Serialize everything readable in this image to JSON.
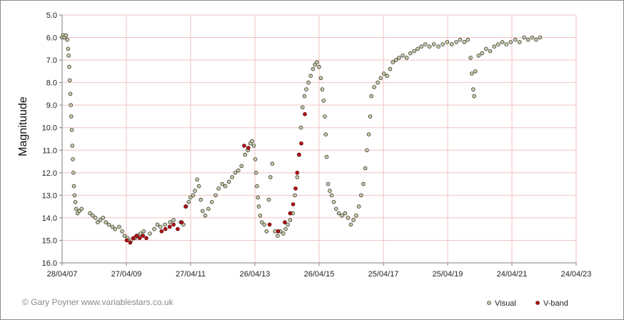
{
  "credit": "© Gary Poyner www.variablestars.co.uk",
  "colors": {
    "grid": "#f3c2c2",
    "axis": "#7f7f7f",
    "visual_fill": "#c8cfa6",
    "visual_edge": "#333333",
    "vband_fill": "#b80f18",
    "vband_edge": "#5a0000"
  },
  "chart_data": {
    "type": "scatter",
    "title": "",
    "xlabel": "",
    "ylabel": "Magnituude",
    "y_inverted": true,
    "ylim": [
      5.0,
      16.0
    ],
    "yticks": [
      "5.0",
      "6.0",
      "7.0",
      "8.0",
      "9.0",
      "10.0",
      "11.0",
      "12.0",
      "13.0",
      "14.0",
      "15.0",
      "16.0"
    ],
    "xlim": [
      "2007-04-28",
      "2023-04-24"
    ],
    "xticks": [
      "28/04/07",
      "27/04/09",
      "27/04/11",
      "26/04/13",
      "26/04/15",
      "25/04/17",
      "25/04/19",
      "24/04/21",
      "24/04/23"
    ],
    "grid": true,
    "legend": {
      "position": "bottom-right",
      "entries": [
        "Visual",
        "V-band"
      ]
    },
    "series": [
      {
        "name": "Visual",
        "points": [
          [
            "2007-04-28",
            6.0
          ],
          [
            "2007-05-10",
            5.9
          ],
          [
            "2007-05-25",
            6.0
          ],
          [
            "2007-06-10",
            5.9
          ],
          [
            "2007-06-25",
            6.1
          ],
          [
            "2007-07-05",
            6.5
          ],
          [
            "2007-07-12",
            6.8
          ],
          [
            "2007-07-18",
            7.3
          ],
          [
            "2007-07-24",
            7.9
          ],
          [
            "2007-07-30",
            8.5
          ],
          [
            "2007-08-05",
            9.0
          ],
          [
            "2007-08-10",
            9.5
          ],
          [
            "2007-08-16",
            10.1
          ],
          [
            "2007-08-22",
            10.8
          ],
          [
            "2007-08-28",
            11.4
          ],
          [
            "2007-09-03",
            12.0
          ],
          [
            "2007-09-09",
            12.6
          ],
          [
            "2007-09-16",
            13.0
          ],
          [
            "2007-09-25",
            13.3
          ],
          [
            "2007-10-05",
            13.6
          ],
          [
            "2007-10-20",
            13.8
          ],
          [
            "2007-11-10",
            13.7
          ],
          [
            "2007-12-05",
            13.6
          ],
          [
            "2008-03-10",
            13.8
          ],
          [
            "2008-04-10",
            13.9
          ],
          [
            "2008-05-10",
            14.0
          ],
          [
            "2008-06-05",
            14.2
          ],
          [
            "2008-07-05",
            14.1
          ],
          [
            "2008-08-05",
            14.0
          ],
          [
            "2008-09-05",
            14.2
          ],
          [
            "2008-10-10",
            14.3
          ],
          [
            "2008-11-20",
            14.4
          ],
          [
            "2008-12-20",
            14.5
          ],
          [
            "2009-02-05",
            14.4
          ],
          [
            "2009-03-10",
            14.6
          ],
          [
            "2009-04-05",
            14.8
          ],
          [
            "2009-05-10",
            14.9
          ],
          [
            "2009-06-20",
            15.0
          ],
          [
            "2009-08-05",
            14.9
          ],
          [
            "2009-09-10",
            14.8
          ],
          [
            "2009-10-05",
            14.7
          ],
          [
            "2009-11-10",
            14.6
          ],
          [
            "2010-01-20",
            14.7
          ],
          [
            "2010-03-10",
            14.5
          ],
          [
            "2010-04-15",
            14.3
          ],
          [
            "2010-05-20",
            14.4
          ],
          [
            "2010-07-10",
            14.3
          ],
          [
            "2010-09-05",
            14.2
          ],
          [
            "2010-10-15",
            14.1
          ],
          [
            "2011-01-05",
            14.2
          ],
          [
            "2011-02-05",
            14.3
          ],
          [
            "2011-03-05",
            13.5
          ],
          [
            "2011-04-05",
            13.3
          ],
          [
            "2011-04-25",
            13.1
          ],
          [
            "2011-05-25",
            13.0
          ],
          [
            "2011-06-15",
            12.8
          ],
          [
            "2011-07-10",
            12.3
          ],
          [
            "2011-07-30",
            12.6
          ],
          [
            "2011-08-20",
            13.2
          ],
          [
            "2011-09-10",
            13.7
          ],
          [
            "2011-10-10",
            13.9
          ],
          [
            "2011-11-15",
            13.6
          ],
          [
            "2011-12-25",
            13.3
          ],
          [
            "2012-02-05",
            13.0
          ],
          [
            "2012-03-10",
            12.7
          ],
          [
            "2012-04-20",
            12.5
          ],
          [
            "2012-05-25",
            12.6
          ],
          [
            "2012-07-05",
            12.4
          ],
          [
            "2012-08-10",
            12.2
          ],
          [
            "2012-09-15",
            12.0
          ],
          [
            "2012-10-20",
            11.9
          ],
          [
            "2012-11-25",
            11.7
          ],
          [
            "2013-01-05",
            11.2
          ],
          [
            "2013-02-05",
            11.0
          ],
          [
            "2013-03-05",
            10.7
          ],
          [
            "2013-03-25",
            10.6
          ],
          [
            "2013-04-15",
            10.8
          ],
          [
            "2013-05-01",
            11.4
          ],
          [
            "2013-05-10",
            12.0
          ],
          [
            "2013-05-20",
            12.6
          ],
          [
            "2013-05-30",
            13.1
          ],
          [
            "2013-06-10",
            13.5
          ],
          [
            "2013-06-25",
            13.9
          ],
          [
            "2013-07-15",
            14.2
          ],
          [
            "2013-08-10",
            14.3
          ],
          [
            "2013-09-05",
            14.6
          ],
          [
            "2013-10-01",
            13.2
          ],
          [
            "2013-10-20",
            12.2
          ],
          [
            "2013-11-10",
            11.6
          ],
          [
            "2013-12-10",
            14.6
          ],
          [
            "2014-01-10",
            14.8
          ],
          [
            "2014-02-10",
            14.6
          ],
          [
            "2014-03-15",
            14.7
          ],
          [
            "2014-04-10",
            14.5
          ],
          [
            "2014-05-05",
            14.3
          ],
          [
            "2014-06-01",
            14.1
          ],
          [
            "2014-07-01",
            13.8
          ],
          [
            "2014-07-25",
            13.0
          ],
          [
            "2014-08-20",
            12.2
          ],
          [
            "2014-09-10",
            11.2
          ],
          [
            "2014-10-01",
            10.0
          ],
          [
            "2014-10-20",
            9.1
          ],
          [
            "2014-11-10",
            8.6
          ],
          [
            "2014-12-01",
            8.3
          ],
          [
            "2014-12-25",
            8.0
          ],
          [
            "2015-01-20",
            7.7
          ],
          [
            "2015-02-15",
            7.4
          ],
          [
            "2015-03-10",
            7.2
          ],
          [
            "2015-04-01",
            7.1
          ],
          [
            "2015-04-25",
            7.3
          ],
          [
            "2015-05-15",
            7.8
          ],
          [
            "2015-06-01",
            8.3
          ],
          [
            "2015-06-15",
            8.8
          ],
          [
            "2015-06-30",
            9.5
          ],
          [
            "2015-07-10",
            10.3
          ],
          [
            "2015-07-20",
            11.3
          ],
          [
            "2015-08-05",
            12.5
          ],
          [
            "2015-08-25",
            12.8
          ],
          [
            "2015-09-15",
            13.0
          ],
          [
            "2015-10-10",
            13.3
          ],
          [
            "2015-11-05",
            13.6
          ],
          [
            "2015-12-05",
            13.8
          ],
          [
            "2016-01-10",
            13.9
          ],
          [
            "2016-02-15",
            13.8
          ],
          [
            "2016-03-20",
            14.0
          ],
          [
            "2016-04-20",
            14.3
          ],
          [
            "2016-05-20",
            14.1
          ],
          [
            "2016-06-20",
            13.9
          ],
          [
            "2016-07-20",
            13.5
          ],
          [
            "2016-08-15",
            13.0
          ],
          [
            "2016-09-10",
            12.5
          ],
          [
            "2016-10-01",
            11.8
          ],
          [
            "2016-10-20",
            11.0
          ],
          [
            "2016-11-10",
            10.3
          ],
          [
            "2016-11-25",
            9.5
          ],
          [
            "2016-12-10",
            8.6
          ],
          [
            "2017-01-10",
            8.2
          ],
          [
            "2017-02-20",
            8.0
          ],
          [
            "2017-03-25",
            7.8
          ],
          [
            "2017-05-01",
            7.6
          ],
          [
            "2017-06-05",
            7.7
          ],
          [
            "2017-07-10",
            7.4
          ],
          [
            "2017-08-10",
            7.1
          ],
          [
            "2017-09-15",
            7.0
          ],
          [
            "2017-10-20",
            6.9
          ],
          [
            "2017-12-01",
            6.8
          ],
          [
            "2018-01-15",
            6.9
          ],
          [
            "2018-02-25",
            6.7
          ],
          [
            "2018-04-10",
            6.6
          ],
          [
            "2018-05-20",
            6.5
          ],
          [
            "2018-07-01",
            6.4
          ],
          [
            "2018-08-15",
            6.3
          ],
          [
            "2018-10-01",
            6.4
          ],
          [
            "2018-11-20",
            6.3
          ],
          [
            "2019-01-10",
            6.4
          ],
          [
            "2019-03-01",
            6.3
          ],
          [
            "2019-04-20",
            6.2
          ],
          [
            "2019-06-10",
            6.3
          ],
          [
            "2019-08-01",
            6.2
          ],
          [
            "2019-09-15",
            6.1
          ],
          [
            "2019-11-01",
            6.2
          ],
          [
            "2019-12-10",
            6.1
          ],
          [
            "2020-01-10",
            6.9
          ],
          [
            "2020-01-25",
            7.6
          ],
          [
            "2020-02-10",
            8.3
          ],
          [
            "2020-02-20",
            8.6
          ],
          [
            "2020-03-05",
            7.5
          ],
          [
            "2020-04-10",
            6.8
          ],
          [
            "2020-05-20",
            6.7
          ],
          [
            "2020-07-05",
            6.5
          ],
          [
            "2020-08-20",
            6.6
          ],
          [
            "2020-10-05",
            6.4
          ],
          [
            "2020-11-20",
            6.3
          ],
          [
            "2021-01-05",
            6.2
          ],
          [
            "2021-02-20",
            6.3
          ],
          [
            "2021-04-10",
            6.2
          ],
          [
            "2021-06-01",
            6.1
          ],
          [
            "2021-07-20",
            6.2
          ],
          [
            "2021-09-10",
            6.0
          ],
          [
            "2021-10-25",
            6.1
          ],
          [
            "2021-12-10",
            6.0
          ],
          [
            "2022-01-25",
            6.1
          ],
          [
            "2022-03-10",
            6.0
          ]
        ]
      },
      {
        "name": "V-band",
        "points": [
          [
            "2009-05-01",
            15.0
          ],
          [
            "2009-06-10",
            15.1
          ],
          [
            "2009-07-15",
            14.9
          ],
          [
            "2009-08-20",
            14.8
          ],
          [
            "2009-09-25",
            14.9
          ],
          [
            "2009-11-01",
            14.8
          ],
          [
            "2009-12-10",
            14.9
          ],
          [
            "2010-06-01",
            14.6
          ],
          [
            "2010-07-15",
            14.5
          ],
          [
            "2010-09-01",
            14.4
          ],
          [
            "2010-10-15",
            14.3
          ],
          [
            "2010-12-01",
            14.5
          ],
          [
            "2011-01-15",
            14.2
          ],
          [
            "2011-03-01",
            13.5
          ],
          [
            "2012-12-25",
            10.8
          ],
          [
            "2013-02-10",
            10.9
          ],
          [
            "2013-10-10",
            14.3
          ],
          [
            "2014-01-15",
            14.6
          ],
          [
            "2014-04-01",
            14.2
          ],
          [
            "2014-06-01",
            13.8
          ],
          [
            "2014-07-05",
            13.4
          ],
          [
            "2014-08-01",
            12.7
          ],
          [
            "2014-08-20",
            12.0
          ],
          [
            "2014-09-10",
            11.2
          ],
          [
            "2014-10-05",
            10.7
          ],
          [
            "2014-11-15",
            9.4
          ]
        ]
      }
    ]
  }
}
